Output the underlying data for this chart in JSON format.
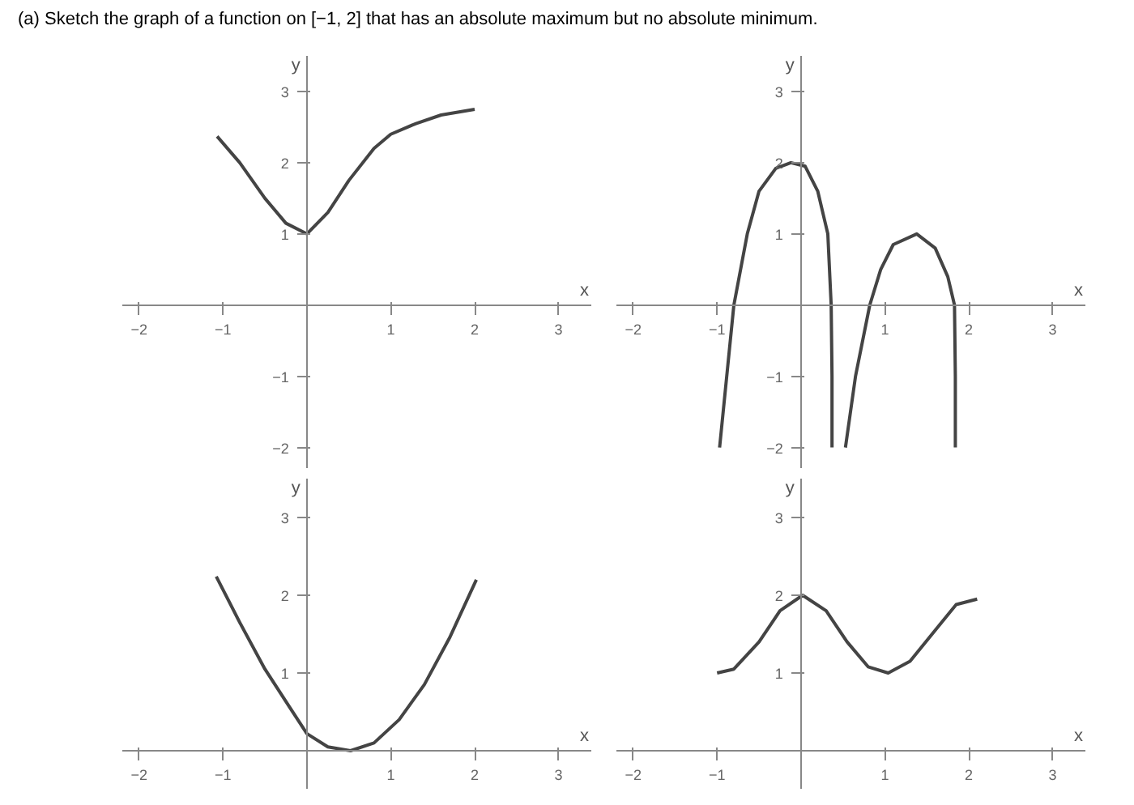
{
  "chart_data": [
    {
      "type": "line",
      "title": "(a) Sketch the graph of a function on [−1, 2] that has an absolute maximum but no absolute minimum.",
      "xlabel": "x",
      "ylabel": "y",
      "xlim": [
        -2.2,
        3.4
      ],
      "ylim": [
        -2.3,
        3.5
      ],
      "xticks": [
        -2,
        -1,
        1,
        2,
        3
      ],
      "yticks": [
        -2,
        -1,
        1,
        2,
        3
      ],
      "grid": false,
      "marker": "none",
      "line_style": "solid",
      "series": [
        {
          "color": "#444444",
          "x": [
            -1.07,
            -0.8,
            -0.5,
            -0.25,
            0,
            0.25,
            0.5,
            0.8,
            1,
            1.3,
            1.6,
            2
          ],
          "values": [
            2.37,
            2.0,
            1.5,
            1.15,
            1.0,
            1.3,
            1.75,
            2.2,
            2.4,
            2.55,
            2.67,
            2.75
          ]
        }
      ]
    },
    {
      "type": "line",
      "xlabel": "x",
      "ylabel": "y",
      "xlim": [
        -2.2,
        3.4
      ],
      "ylim": [
        -2.3,
        3.5
      ],
      "xticks": [
        -2,
        -1,
        1,
        2,
        3
      ],
      "yticks": [
        -2,
        -1,
        1,
        2,
        3
      ],
      "grid": false,
      "marker": "none",
      "line_style": "solid",
      "series": [
        {
          "color": "#444444",
          "x": [
            -0.97,
            -0.8,
            -0.64,
            -0.5,
            -0.3,
            -0.12,
            0.05,
            0.2,
            0.32,
            0.36,
            0.37,
            0.37
          ],
          "values": [
            -2,
            0,
            1,
            1.6,
            1.92,
            2.0,
            1.95,
            1.6,
            1.0,
            0,
            -1,
            -2
          ]
        },
        {
          "color": "#444444",
          "x": [
            0.53,
            0.65,
            0.82,
            0.95,
            1.1,
            1.38,
            1.6,
            1.75,
            1.83,
            1.84,
            1.84
          ],
          "values": [
            -2,
            -1,
            0,
            0.5,
            0.85,
            1.0,
            0.8,
            0.4,
            0,
            -1,
            -2
          ]
        }
      ]
    },
    {
      "type": "line",
      "xlabel": "x",
      "ylabel": "y",
      "xlim": [
        -2.2,
        3.4
      ],
      "ylim": [
        -0.5,
        3.5
      ],
      "xticks": [
        -2,
        -1,
        1,
        2,
        3
      ],
      "yticks": [
        1,
        2,
        3
      ],
      "grid": false,
      "marker": "none",
      "line_style": "solid",
      "series": [
        {
          "color": "#444444",
          "x": [
            -1.08,
            -0.8,
            -0.5,
            -0.2,
            0,
            0.25,
            0.52,
            0.8,
            1.1,
            1.4,
            1.7,
            2.02
          ],
          "values": [
            2.24,
            1.65,
            1.05,
            0.55,
            0.22,
            0.05,
            0,
            0.1,
            0.4,
            0.85,
            1.45,
            2.2
          ]
        }
      ]
    },
    {
      "type": "line",
      "xlabel": "x",
      "ylabel": "y",
      "xlim": [
        -2.2,
        3.4
      ],
      "ylim": [
        -0.5,
        3.5
      ],
      "xticks": [
        -2,
        -1,
        1,
        2,
        3
      ],
      "yticks": [
        1,
        2,
        3
      ],
      "grid": false,
      "marker": "none",
      "line_style": "solid",
      "series": [
        {
          "color": "#444444",
          "x": [
            -1,
            -0.8,
            -0.5,
            -0.25,
            0.02,
            0.3,
            0.55,
            0.8,
            1.04,
            1.3,
            1.6,
            1.85,
            2.1
          ],
          "values": [
            1.0,
            1.05,
            1.4,
            1.8,
            2.0,
            1.8,
            1.4,
            1.08,
            1.0,
            1.15,
            1.55,
            1.88,
            1.95
          ]
        }
      ]
    }
  ]
}
